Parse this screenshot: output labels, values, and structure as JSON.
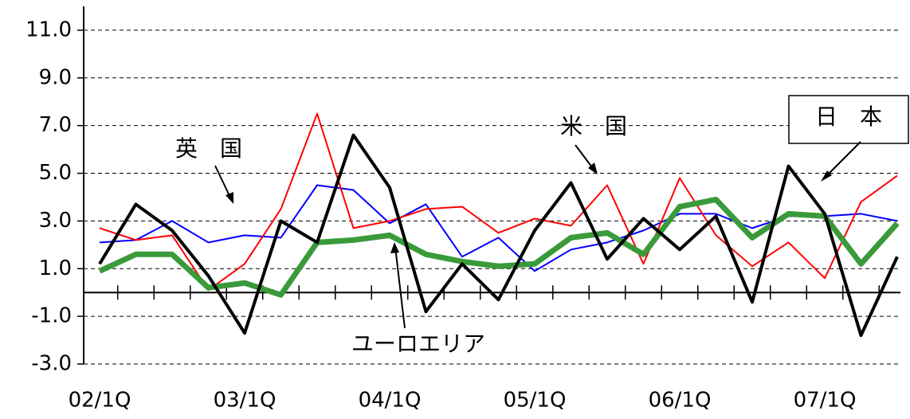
{
  "chart_data": {
    "type": "line",
    "categories": [
      "02/1Q",
      null,
      null,
      null,
      "03/1Q",
      null,
      null,
      null,
      "04/1Q",
      null,
      null,
      null,
      "05/1Q",
      null,
      null,
      null,
      "06/1Q",
      null,
      null,
      null,
      "07/1Q",
      null,
      null
    ],
    "series": [
      {
        "name": "英　国",
        "color": "#0000ff",
        "width": 2,
        "values": [
          2.1,
          2.2,
          3.0,
          2.1,
          2.4,
          2.3,
          4.5,
          4.3,
          2.9,
          3.7,
          1.5,
          2.3,
          0.9,
          1.8,
          2.1,
          2.6,
          3.3,
          3.3,
          2.7,
          3.2,
          3.2,
          3.3,
          3.0
        ]
      },
      {
        "name": "米　国",
        "color": "#ff0000",
        "width": 2,
        "values": [
          2.7,
          2.2,
          2.4,
          0.1,
          1.2,
          3.5,
          7.5,
          2.7,
          3.0,
          3.5,
          3.6,
          2.5,
          3.1,
          2.8,
          4.5,
          1.2,
          4.8,
          2.4,
          1.1,
          2.1,
          0.6,
          3.8,
          4.9
        ]
      },
      {
        "name": "ユーロエリア",
        "color": "#3a9a3a",
        "width": 7,
        "values": [
          0.9,
          1.6,
          1.6,
          0.2,
          0.4,
          -0.1,
          2.1,
          2.2,
          2.4,
          1.6,
          1.3,
          1.1,
          1.2,
          2.3,
          2.5,
          1.6,
          3.6,
          3.9,
          2.3,
          3.3,
          3.2,
          1.2,
          2.9
        ]
      },
      {
        "name": "日　本",
        "color": "#000000",
        "width": 4,
        "values": [
          1.2,
          3.7,
          2.6,
          0.7,
          -1.7,
          3.0,
          2.1,
          6.6,
          4.4,
          -0.8,
          1.2,
          -0.3,
          2.6,
          4.6,
          1.4,
          3.1,
          1.8,
          3.2,
          -0.4,
          5.3,
          3.3,
          -1.8,
          1.5
        ]
      }
    ],
    "ylim": [
      -3,
      12
    ],
    "yticks": [
      {
        "value": -3,
        "label": "-3.0"
      },
      {
        "value": -1,
        "label": "-1.0"
      },
      {
        "value": 1,
        "label": "1.0"
      },
      {
        "value": 3,
        "label": "3.0"
      },
      {
        "value": 5,
        "label": "5.0"
      },
      {
        "value": 7,
        "label": "7.0"
      },
      {
        "value": 9,
        "label": "9.0"
      },
      {
        "value": 11,
        "label": "11.0"
      }
    ],
    "grid": true
  }
}
